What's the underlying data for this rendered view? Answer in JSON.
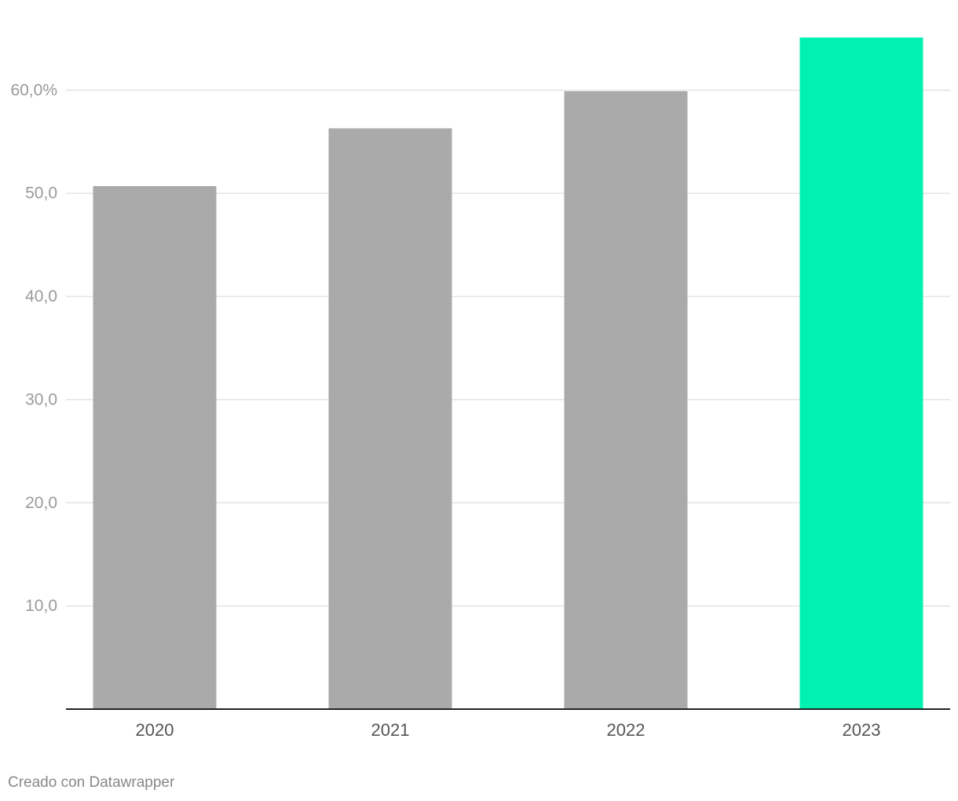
{
  "chart_data": {
    "type": "bar",
    "categories": [
      "2020",
      "2021",
      "2022",
      "2023"
    ],
    "values": [
      50.7,
      56.3,
      59.9,
      65.1
    ],
    "colors": [
      "#aaaaaa",
      "#aaaaaa",
      "#aaaaaa",
      "#00f2b2"
    ],
    "ylim": [
      0,
      66
    ],
    "yticks": [
      {
        "value": 10,
        "label": "10,0"
      },
      {
        "value": 20,
        "label": "20,0"
      },
      {
        "value": 30,
        "label": "30,0"
      },
      {
        "value": 40,
        "label": "40,0"
      },
      {
        "value": 50,
        "label": "50,0"
      },
      {
        "value": 60,
        "label": "60,0%"
      }
    ],
    "grid": true,
    "source": "Creado con Datawrapper"
  }
}
